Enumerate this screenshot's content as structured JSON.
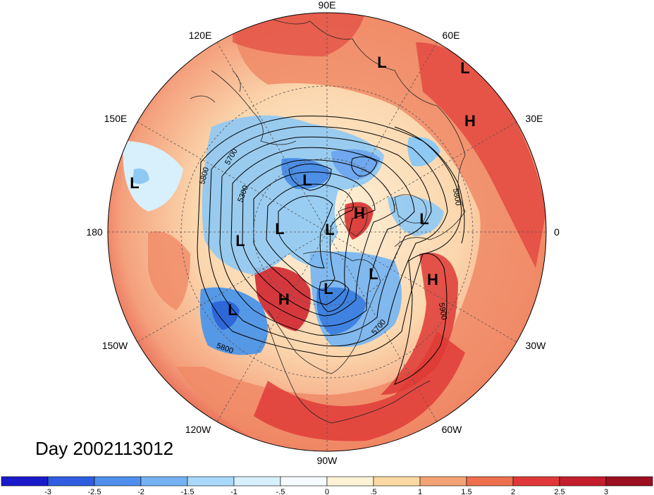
{
  "map": {
    "projection": "polar stereographic (north pole)",
    "longitude_labels": [
      "90E",
      "60E",
      "30E",
      "0",
      "30W",
      "60W",
      "90W",
      "120W",
      "150W",
      "180",
      "150E",
      "120E"
    ],
    "day_label": "Day 2002113012",
    "pressure_centers": [
      {
        "type": "L"
      },
      {
        "type": "L"
      },
      {
        "type": "H"
      },
      {
        "type": "L"
      },
      {
        "type": "L"
      },
      {
        "type": "L"
      },
      {
        "type": "L"
      },
      {
        "type": "H"
      },
      {
        "type": "L"
      },
      {
        "type": "L"
      },
      {
        "type": "L"
      },
      {
        "type": "L"
      },
      {
        "type": "L"
      },
      {
        "type": "H"
      },
      {
        "type": "H"
      }
    ],
    "contour_labels": [
      "5700",
      "5800",
      "5300",
      "5800",
      "5700",
      "5900",
      "5800"
    ],
    "colors": {
      "strong_positive": "#d0202a",
      "positive": "#f2987a",
      "weak_positive": "#fbe2c0",
      "negative": "#5aa6e8",
      "strong_negative": "#2b6fd6"
    }
  },
  "colorbar": {
    "ticks": [
      "-3",
      "-2.5",
      "-2",
      "-1.5",
      "-1",
      "-.5",
      "0",
      ".5",
      "1",
      "1.5",
      "2",
      "2.5",
      "3"
    ],
    "colors": [
      "#1a1acb",
      "#2f5de0",
      "#4f8eec",
      "#75b2f4",
      "#a9d8fa",
      "#d6f1fd",
      "#f6fbff",
      "#fdf2d6",
      "#fbd9a2",
      "#f4a374",
      "#ee6f4e",
      "#e0383a",
      "#c41e2c",
      "#9c0f20"
    ]
  }
}
